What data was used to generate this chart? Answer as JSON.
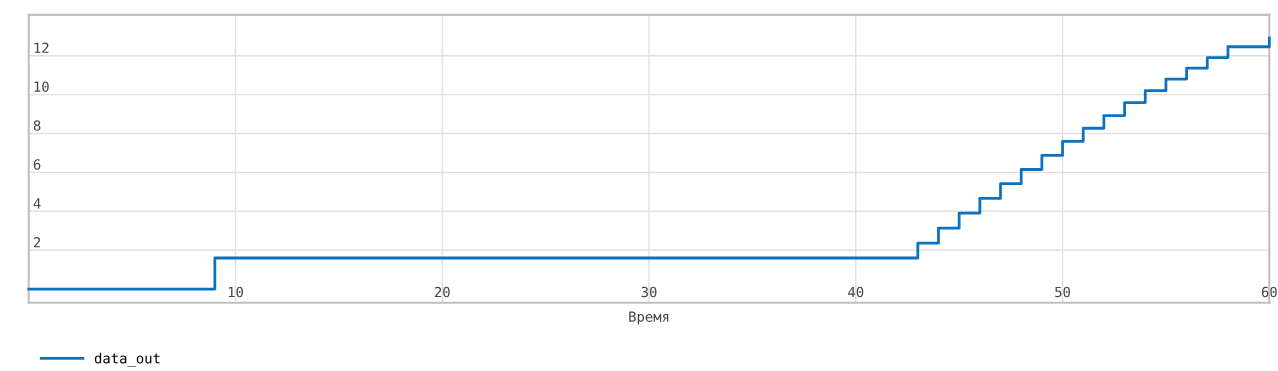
{
  "chart_data": {
    "type": "step",
    "xlabel": "Время",
    "x": [
      0,
      9,
      43,
      44,
      45,
      46,
      47,
      48,
      49,
      50,
      51,
      52,
      53,
      54,
      55,
      56,
      57,
      58,
      60
    ],
    "series": [
      {
        "name": "data_out",
        "color": "#0b72bf",
        "values": [
          0,
          1.6,
          2.36,
          3.13,
          3.91,
          4.67,
          5.42,
          6.15,
          6.87,
          7.59,
          8.27,
          8.92,
          9.59,
          10.2,
          10.8,
          11.36,
          11.9,
          12.46,
          12.9
        ]
      }
    ],
    "xlim": [
      0,
      60
    ],
    "xticks": [
      10,
      20,
      30,
      40,
      50,
      60
    ],
    "ylim": [
      -0.7,
      14.1
    ],
    "yticks": [
      2,
      4,
      6,
      8,
      10,
      12
    ],
    "grid": true,
    "legend": "bottom left"
  }
}
